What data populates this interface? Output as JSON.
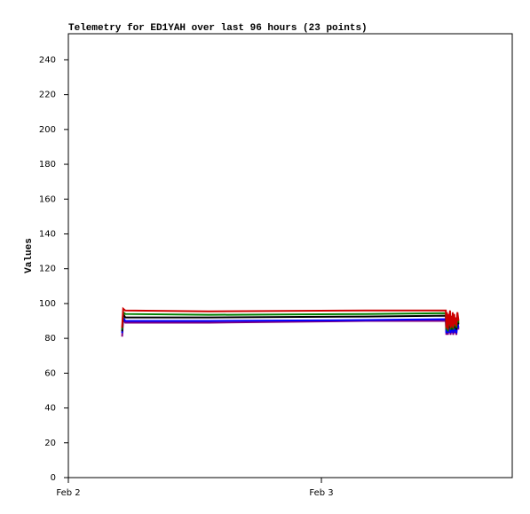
{
  "chart_data": {
    "type": "line",
    "title": "Telemetry for ED1YAH over last 96 hours (23 points)",
    "y_label": "Values",
    "x": [
      5.1,
      5.2,
      5.4,
      13.3,
      28.2,
      35.8,
      35.85,
      35.9,
      36.0,
      36.05,
      36.1,
      36.2,
      36.25,
      36.3,
      36.4,
      36.45,
      36.5,
      36.6,
      36.65,
      36.7,
      36.8,
      36.9,
      37.0
    ],
    "xlim": [
      0,
      42.1
    ],
    "xticks": [
      {
        "value": 0,
        "label": "Feb 2"
      },
      {
        "value": 24,
        "label": "Feb 3"
      }
    ],
    "ylim": [
      0,
      255
    ],
    "yticks": [
      0,
      20,
      40,
      60,
      80,
      100,
      120,
      140,
      160,
      180,
      200,
      220,
      240
    ],
    "series": [
      {
        "color": "#800080",
        "values": [
          81,
          91,
          89,
          89,
          90,
          90,
          82,
          89,
          82,
          88,
          83,
          89,
          82,
          87,
          83,
          89,
          82,
          88,
          83,
          86,
          82,
          89,
          85
        ]
      },
      {
        "color": "#0000ff",
        "values": [
          83,
          92,
          90,
          90,
          90.5,
          91,
          83,
          90,
          83,
          89,
          84,
          90,
          83,
          88,
          84,
          90,
          83,
          89,
          84,
          87,
          83,
          90,
          86
        ]
      },
      {
        "color": "#000000",
        "values": [
          84,
          94,
          92,
          92,
          92.5,
          93,
          85,
          92,
          84,
          91,
          86,
          92,
          85,
          90,
          85,
          92,
          85,
          91,
          86,
          89,
          85,
          92,
          88
        ]
      },
      {
        "color": "#008000",
        "values": [
          85,
          95,
          94,
          93.5,
          94,
          94.5,
          85,
          93,
          84,
          92,
          87,
          94,
          85,
          91,
          86,
          93,
          85,
          92,
          87,
          90,
          86,
          93,
          89
        ]
      },
      {
        "color": "#cc0000",
        "values": [
          86,
          97,
          96,
          95.5,
          96,
          96,
          86,
          95,
          85,
          94,
          88,
          96,
          86,
          93,
          87,
          95,
          86,
          94,
          88,
          92,
          87,
          95,
          90
        ]
      }
    ]
  }
}
